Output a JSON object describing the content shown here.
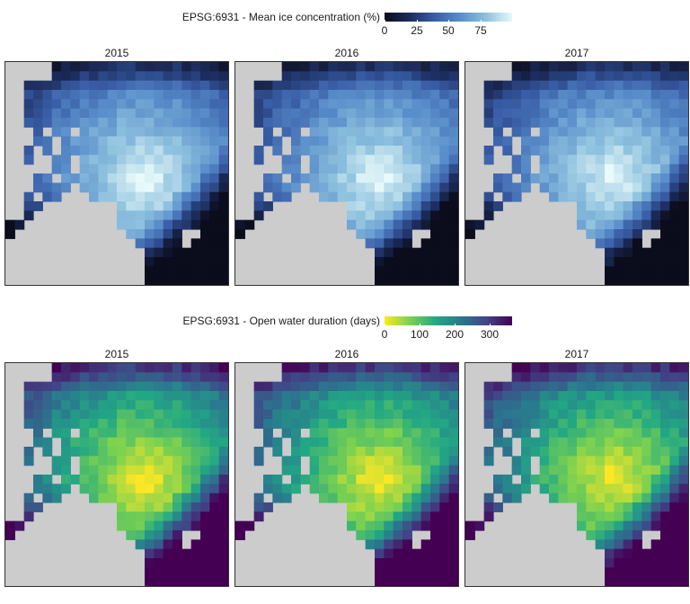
{
  "top": {
    "legend_title": "EPSG:6931 - Mean ice concentration (%)",
    "ticks": [
      "0",
      "25",
      "50",
      "75"
    ],
    "tick_values": [
      0,
      25,
      50,
      75
    ],
    "range": [
      0,
      100
    ],
    "colors": [
      "#0b0d1c",
      "#1c2d5e",
      "#3a5fa8",
      "#5a8fcb",
      "#8fc2de",
      "#e8fafa"
    ]
  },
  "bottom": {
    "legend_title": "EPSG:6931 - Open water duration (days)",
    "ticks": [
      "0",
      "100",
      "200",
      "300"
    ],
    "tick_values": [
      0,
      100,
      200,
      300
    ],
    "range": [
      0,
      365
    ],
    "colors": [
      "#fde725",
      "#7ad151",
      "#22a884",
      "#2a788e",
      "#414487",
      "#440154"
    ]
  },
  "years": [
    "2015",
    "2016",
    "2017"
  ],
  "land_color": "#cccccc"
}
